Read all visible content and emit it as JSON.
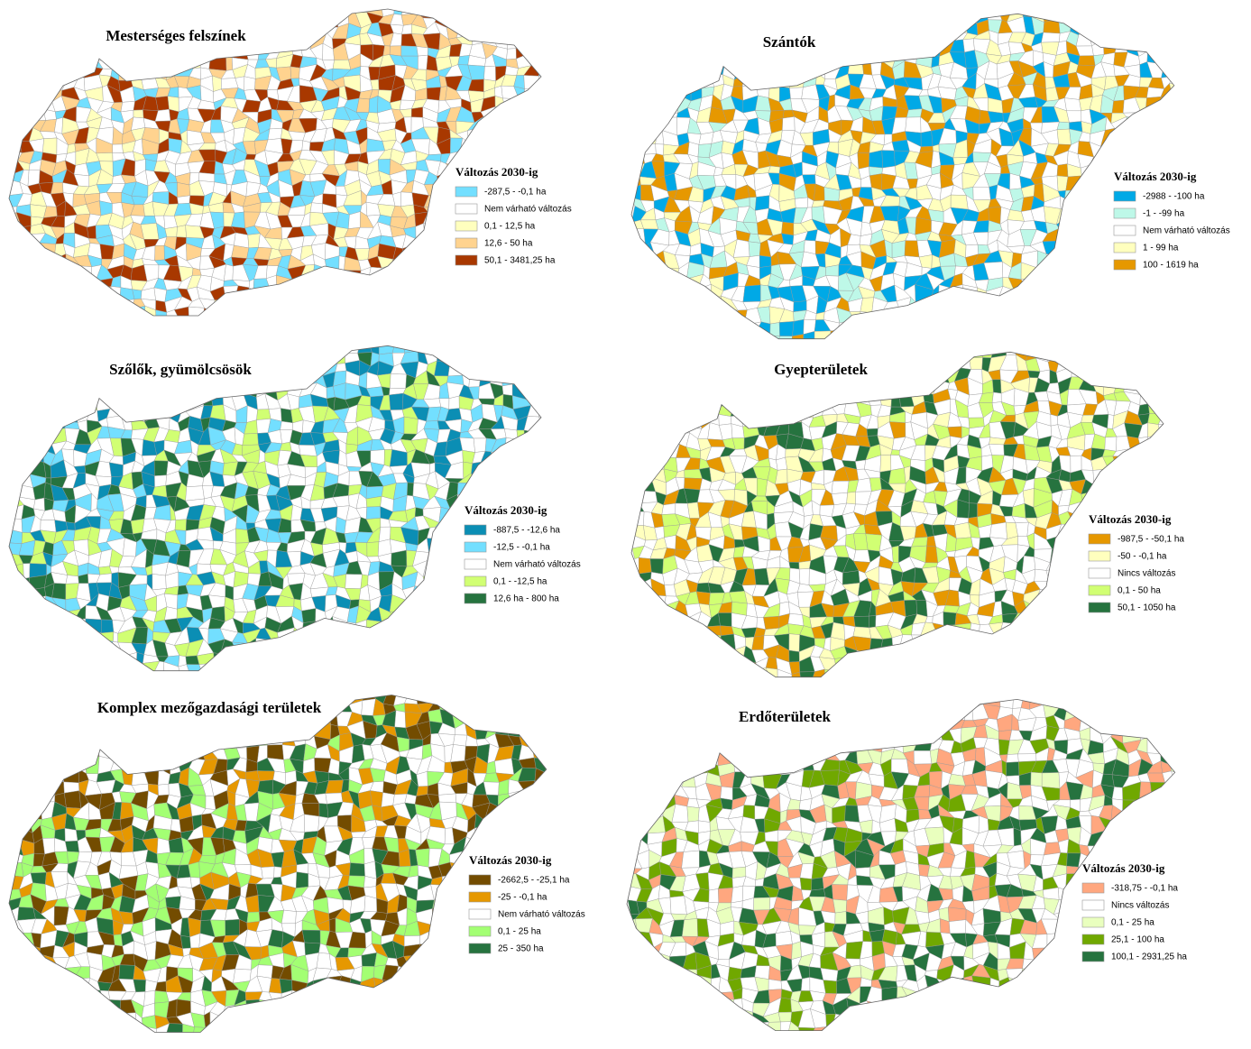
{
  "panels": [
    {
      "title": "Mesterséges felszínek",
      "legend": {
        "title": "Változás 2030-ig",
        "items": [
          {
            "label": "-287,5 - -0,1 ha",
            "color": "#73dfff"
          },
          {
            "label": "Nem várható változás",
            "color": "#ffffff"
          },
          {
            "label": "0,1 - 12,5 ha",
            "color": "#ffffbe"
          },
          {
            "label": "12,6 - 50 ha",
            "color": "#ffd38f"
          },
          {
            "label": "50,1 - 3481,25 ha",
            "color": "#a83800"
          }
        ]
      }
    },
    {
      "title": "Szántók",
      "legend": {
        "title": "Változás 2030-ig",
        "items": [
          {
            "label": "-2988 - -100 ha",
            "color": "#00a9e6"
          },
          {
            "label": "-1 - -99 ha",
            "color": "#bef8e8"
          },
          {
            "label": "Nem várható változás",
            "color": "#ffffff"
          },
          {
            "label": "1 - 99 ha",
            "color": "#ffffbe"
          },
          {
            "label": "100 - 1619 ha",
            "color": "#e69800"
          }
        ]
      }
    },
    {
      "title": "Szőlők, gyümölcsösök",
      "legend": {
        "title": "Változás 2030-ig",
        "items": [
          {
            "label": "-887,5 - -12,6 ha",
            "color": "#0b8eb4"
          },
          {
            "label": "-12,5 - -0,1 ha",
            "color": "#73dfff"
          },
          {
            "label": "Nem várható változás",
            "color": "#ffffff"
          },
          {
            "label": "0,1 - -12,5 ha",
            "color": "#d1ff73"
          },
          {
            "label": "12,6 ha - 800 ha",
            "color": "#26733f"
          }
        ]
      }
    },
    {
      "title": "Gyepterületek",
      "legend": {
        "title": "Változás 2030-ig",
        "items": [
          {
            "label": "-987,5 - -50,1 ha",
            "color": "#e69800"
          },
          {
            "label": "-50 - -0,1 ha",
            "color": "#ffffbe"
          },
          {
            "label": "Nincs változás",
            "color": "#ffffff"
          },
          {
            "label": "0,1 - 50 ha",
            "color": "#d1ff73"
          },
          {
            "label": "50,1 - 1050 ha",
            "color": "#26733f"
          }
        ]
      }
    },
    {
      "title": "Komplex mezőgazdasági területek",
      "legend": {
        "title": "Változás 2030-ig",
        "items": [
          {
            "label": "-2662,5 - -25,1 ha",
            "color": "#734c00"
          },
          {
            "label": "-25 - -0,1 ha",
            "color": "#e69800"
          },
          {
            "label": "Nem várható változás",
            "color": "#ffffff"
          },
          {
            "label": "0,1 - 25 ha",
            "color": "#a3ff73"
          },
          {
            "label": "25 - 350 ha",
            "color": "#26733f"
          }
        ]
      }
    },
    {
      "title": "Erdőterületek",
      "legend": {
        "title": "Változás 2030-ig",
        "items": [
          {
            "label": "-318,75 - -0,1 ha",
            "color": "#ffa77f"
          },
          {
            "label": "Nincs változás",
            "color": "#ffffff"
          },
          {
            "label": "0,1 - 25 ha",
            "color": "#e9ffbe"
          },
          {
            "label": "25,1 - 100 ha",
            "color": "#70a800"
          },
          {
            "label": "100,1 - 2931,25 ha",
            "color": "#26733f"
          }
        ]
      }
    }
  ]
}
